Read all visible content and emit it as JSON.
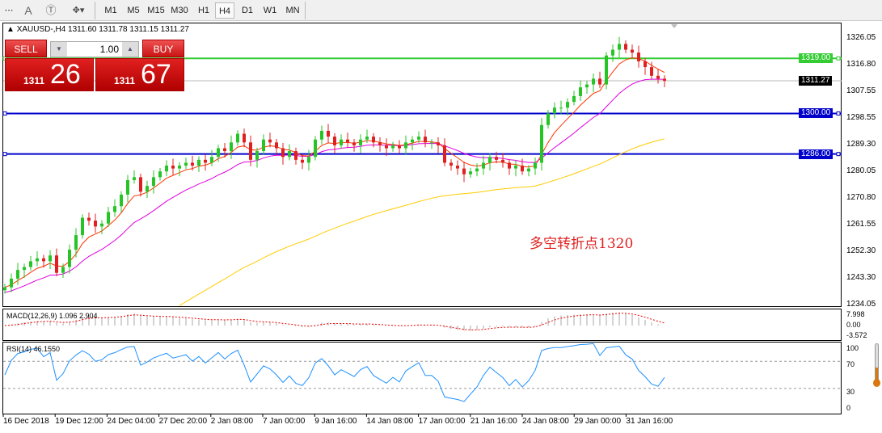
{
  "toolbar": {
    "icons": [
      "grid-icon",
      "text-icon",
      "text-label-icon",
      "shapes-icon"
    ],
    "timeframes": [
      "M1",
      "M5",
      "M15",
      "M30",
      "H1",
      "H4",
      "D1",
      "W1",
      "MN"
    ],
    "active": "H4"
  },
  "chart": {
    "header": "XAUUSD-,H4  1311.60 1311.78 1311.15 1311.27",
    "annotation": "多空转折点1320"
  },
  "trade_panel": {
    "sell_label": "SELL",
    "buy_label": "BUY",
    "volume": "1.00",
    "sell_big": "1311",
    "sell_small": "26",
    "buy_big": "1311",
    "buy_small": "67"
  },
  "colors": {
    "bull": "#26c426",
    "bear": "#e02020",
    "ma_fast": "#ff3300",
    "ma_mid": "#e000e0",
    "ma_slow": "#ffcc00",
    "level_green": "#33cc33",
    "level_blue": "#0000cc",
    "rsi": "#1e90ff"
  },
  "chart_data": [
    {
      "type": "candlestick",
      "symbol": "XAUUSD-",
      "timeframe": "H4",
      "ylim": [
        1234.05,
        1326.05
      ],
      "yticks": [
        "1326.05",
        "1316.80",
        "1307.55",
        "1298.55",
        "1289.30",
        "1280.05",
        "1270.80",
        "1261.55",
        "1252.30",
        "1243.30",
        "1234.05"
      ],
      "xticks": [
        "16 Dec 2018",
        "19 Dec 12:00",
        "24 Dec 04:00",
        "27 Dec 20:00",
        "2 Jan 08:00",
        "7 Jan 00:00",
        "9 Jan 16:00",
        "14 Jan 08:00",
        "17 Jan 00:00",
        "21 Jan 16:00",
        "24 Jan 08:00",
        "29 Jan 00:00",
        "31 Jan 16:00"
      ],
      "closes": [
        1240,
        1243,
        1246,
        1247,
        1249,
        1250,
        1249,
        1251,
        1245,
        1247,
        1253,
        1258,
        1264,
        1263,
        1261,
        1262,
        1266,
        1268,
        1272,
        1277,
        1278,
        1273,
        1275,
        1278,
        1280,
        1282,
        1281,
        1282,
        1283,
        1282,
        1284,
        1283,
        1285,
        1288,
        1287,
        1290,
        1293,
        1290,
        1284,
        1287,
        1291,
        1290,
        1288,
        1285,
        1287,
        1284,
        1283,
        1285,
        1291,
        1294,
        1292,
        1289,
        1291,
        1290,
        1289,
        1291,
        1292,
        1290,
        1289,
        1288,
        1289,
        1288,
        1290,
        1291,
        1292,
        1290,
        1290,
        1289,
        1283,
        1282,
        1281,
        1279,
        1280,
        1281,
        1283,
        1285,
        1284,
        1283,
        1281,
        1282,
        1280,
        1281,
        1283,
        1296,
        1300,
        1302,
        1302,
        1304,
        1306,
        1309,
        1310,
        1312,
        1310,
        1320,
        1322,
        1324,
        1322,
        1321,
        1318,
        1316,
        1313,
        1312,
        1311.27
      ],
      "levels": [
        {
          "price": 1319.0,
          "label": "1319.00",
          "color": "green"
        },
        {
          "price": 1300.0,
          "label": "1300.00",
          "color": "blue"
        },
        {
          "price": 1286.0,
          "label": "1286.00",
          "color": "blue"
        }
      ],
      "current_price": "1311.27"
    },
    {
      "type": "macd",
      "label": "MACD(12,26,9) 1.096 2.904",
      "yticks": [
        "7.998",
        "0.00",
        "-3.572"
      ]
    },
    {
      "type": "line",
      "label": "RSI(14) 46.1550",
      "ylim": [
        0,
        100
      ],
      "yticks": [
        "100",
        "70",
        "30",
        "0"
      ],
      "levels": [
        70,
        30
      ]
    }
  ]
}
